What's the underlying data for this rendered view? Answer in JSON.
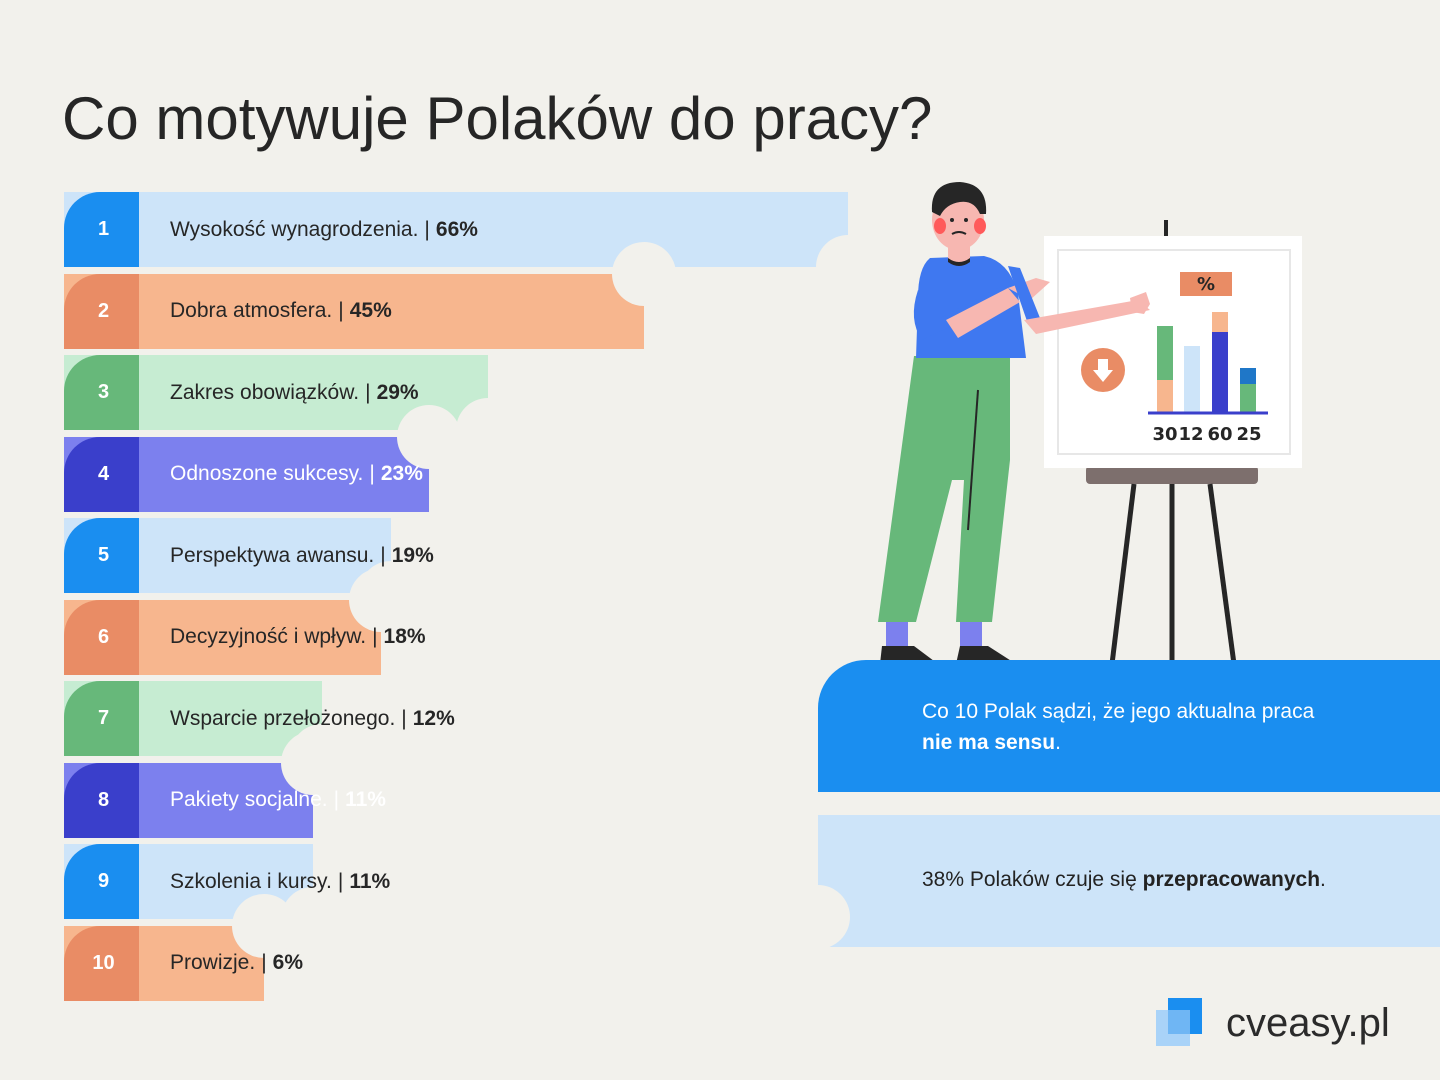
{
  "title": "Co motywuje Polaków do pracy?",
  "chart_data": {
    "type": "bar",
    "orientation": "horizontal",
    "categories": [
      "Wysokość wynagrodzenia.",
      "Dobra atmosfera.",
      "Zakres obowiązków.",
      "Odnoszone sukcesy.",
      "Perspektywa awansu.",
      "Decyzyjność i wpływ.",
      "Wsparcie przełożonego.",
      "Pakiety socjalne.",
      "Szkolenia i kursy.",
      "Prowizje."
    ],
    "ranks": [
      "1",
      "2",
      "3",
      "4",
      "5",
      "6",
      "7",
      "8",
      "9",
      "10"
    ],
    "values": [
      66,
      45,
      29,
      23,
      19,
      18,
      12,
      11,
      11,
      6
    ],
    "value_labels": [
      "66%",
      "45%",
      "29%",
      "23%",
      "19%",
      "18%",
      "12%",
      "11%",
      "11%",
      "6%"
    ],
    "separator": "|",
    "title": "Co motywuje Polaków do pracy?",
    "xlabel": "",
    "ylabel": "",
    "grid": false,
    "palette": [
      {
        "num": "#1a8ef0",
        "body": "#cde4f9",
        "text": "#262626"
      },
      {
        "num": "#e98c65",
        "body": "#f7b68e",
        "text": "#262626"
      },
      {
        "num": "#67b87a",
        "body": "#c6ecd2",
        "text": "#262626"
      },
      {
        "num": "#3a3fcb",
        "body": "#7c80ee",
        "text": "#ffffff"
      }
    ]
  },
  "board_chart": {
    "badge": "%",
    "labels": [
      "30",
      "12",
      "60",
      "25"
    ]
  },
  "info": {
    "blue": {
      "pre": "Co 10 Polak sądzi, że jego aktualna praca",
      "bold": "nie ma sensu",
      "post": "."
    },
    "light": {
      "pre": "38% Polaków czuje się ",
      "bold": "przepracowanych",
      "post": "."
    }
  },
  "brand": {
    "name": "cveasy.pl",
    "color_dark": "#1a8ef0",
    "color_light": "#a9d3f8"
  },
  "colors": {
    "background": "#f2f1ec"
  }
}
